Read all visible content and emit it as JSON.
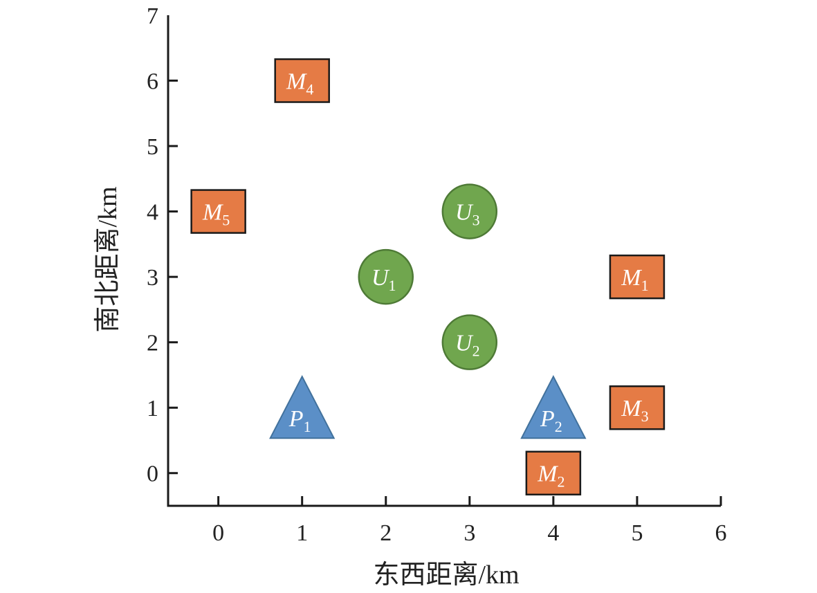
{
  "chart_data": {
    "type": "scatter",
    "title": "",
    "xlabel": "东西距离/km",
    "ylabel": "南北距离/km",
    "xlim": [
      -0.6,
      6
    ],
    "ylim": [
      -0.5,
      7
    ],
    "xticks": [
      0,
      1,
      2,
      3,
      4,
      5,
      6
    ],
    "yticks": [
      0,
      1,
      2,
      3,
      4,
      5,
      6,
      7
    ],
    "grid": false,
    "colors": {
      "M": {
        "fill": "#E57B45",
        "stroke": "#1a1a1a"
      },
      "U": {
        "fill": "#70A64E",
        "stroke": "#4E7A36"
      },
      "P": {
        "fill": "#5B8FC7",
        "stroke": "#41719C"
      },
      "axis": "#1a1a1a"
    },
    "series": [
      {
        "name": "M",
        "marker": "square",
        "points": [
          {
            "label": "M",
            "sub": "1",
            "x": 5,
            "y": 3
          },
          {
            "label": "M",
            "sub": "2",
            "x": 4,
            "y": 0
          },
          {
            "label": "M",
            "sub": "3",
            "x": 5,
            "y": 1
          },
          {
            "label": "M",
            "sub": "4",
            "x": 1,
            "y": 6
          },
          {
            "label": "M",
            "sub": "5",
            "x": 0,
            "y": 4
          }
        ]
      },
      {
        "name": "U",
        "marker": "circle",
        "points": [
          {
            "label": "U",
            "sub": "1",
            "x": 2,
            "y": 3
          },
          {
            "label": "U",
            "sub": "2",
            "x": 3,
            "y": 2
          },
          {
            "label": "U",
            "sub": "3",
            "x": 3,
            "y": 4
          }
        ]
      },
      {
        "name": "P",
        "marker": "triangle",
        "points": [
          {
            "label": "P",
            "sub": "1",
            "x": 1,
            "y": 1
          },
          {
            "label": "P",
            "sub": "2",
            "x": 4,
            "y": 1
          }
        ]
      }
    ]
  }
}
